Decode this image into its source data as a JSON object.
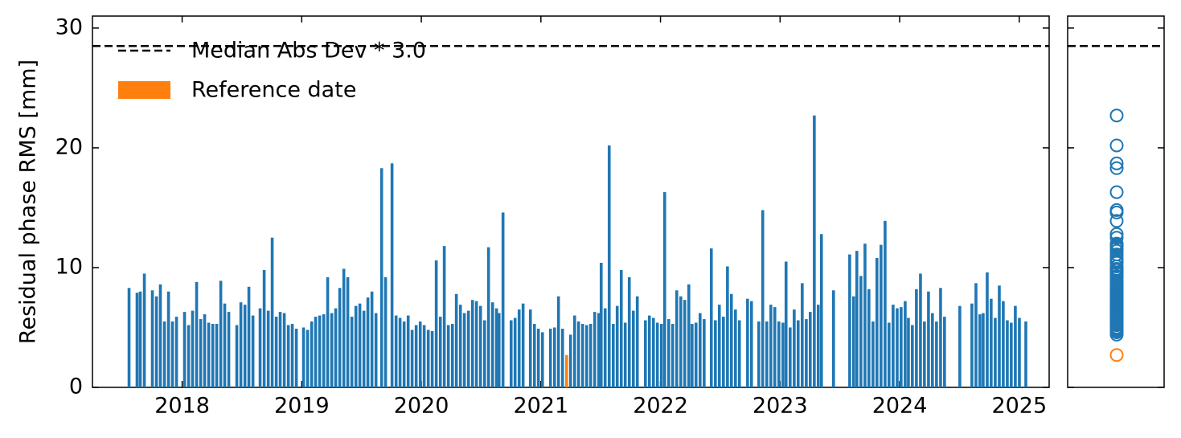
{
  "chart_data": {
    "type": "bar",
    "ylabel": "Residual phase RMS [mm]",
    "xlim": [
      2017.25,
      2025.25
    ],
    "xticks": [
      2018,
      2019,
      2020,
      2021,
      2022,
      2023,
      2024,
      2025
    ],
    "ylim": [
      0,
      31
    ],
    "yticks": [
      0,
      10,
      20,
      30
    ],
    "hline": {
      "name": "Median Abs Dev * 3.0",
      "value": 28.5,
      "color": "#000000"
    },
    "series": [
      {
        "color": "#1f77b4",
        "x": [
          2017.556,
          2017.623,
          2017.65,
          2017.684,
          2017.751,
          2017.785,
          2017.818,
          2017.852,
          2017.886,
          2017.919,
          2017.953,
          2018.02,
          2018.054,
          2018.087,
          2018.121,
          2018.155,
          2018.188,
          2018.222,
          2018.256,
          2018.289,
          2018.323,
          2018.356,
          2018.39,
          2018.457,
          2018.491,
          2018.525,
          2018.558,
          2018.592,
          2018.652,
          2018.686,
          2018.72,
          2018.753,
          2018.787,
          2018.82,
          2018.854,
          2018.888,
          2018.921,
          2018.955,
          2019.015,
          2019.049,
          2019.083,
          2019.116,
          2019.15,
          2019.184,
          2019.217,
          2019.251,
          2019.284,
          2019.318,
          2019.352,
          2019.385,
          2019.419,
          2019.453,
          2019.486,
          2019.52,
          2019.553,
          2019.587,
          2019.621,
          2019.668,
          2019.701,
          2019.755,
          2019.789,
          2019.822,
          2019.856,
          2019.89,
          2019.923,
          2019.957,
          2019.991,
          2020.024,
          2020.058,
          2020.091,
          2020.125,
          2020.159,
          2020.192,
          2020.226,
          2020.26,
          2020.293,
          2020.327,
          2020.36,
          2020.394,
          2020.428,
          2020.461,
          2020.495,
          2020.529,
          2020.562,
          2020.596,
          2020.629,
          2020.65,
          2020.683,
          2020.751,
          2020.784,
          2020.818,
          2020.851,
          2020.912,
          2020.946,
          2020.979,
          2021.013,
          2021.08,
          2021.114,
          2021.147,
          2021.181,
          2021.248,
          2021.282,
          2021.315,
          2021.349,
          2021.383,
          2021.416,
          2021.45,
          2021.484,
          2021.504,
          2021.537,
          2021.571,
          2021.605,
          2021.638,
          2021.672,
          2021.705,
          2021.739,
          2021.773,
          2021.806,
          2021.874,
          2021.907,
          2021.941,
          2021.974,
          2022.008,
          2022.035,
          2022.069,
          2022.102,
          2022.136,
          2022.17,
          2022.203,
          2022.237,
          2022.264,
          2022.297,
          2022.331,
          2022.365,
          2022.425,
          2022.459,
          2022.492,
          2022.526,
          2022.56,
          2022.593,
          2022.627,
          2022.66,
          2022.728,
          2022.761,
          2022.822,
          2022.855,
          2022.889,
          2022.923,
          2022.956,
          2022.99,
          2023.024,
          2023.05,
          2023.084,
          2023.118,
          2023.151,
          2023.185,
          2023.219,
          2023.252,
          2023.286,
          2023.319,
          2023.346,
          2023.447,
          2023.582,
          2023.615,
          2023.642,
          2023.676,
          2023.71,
          2023.743,
          2023.777,
          2023.81,
          2023.844,
          2023.878,
          2023.911,
          2023.945,
          2023.979,
          2024.012,
          2024.046,
          2024.073,
          2024.106,
          2024.14,
          2024.174,
          2024.207,
          2024.241,
          2024.274,
          2024.308,
          2024.342,
          2024.375,
          2024.503,
          2024.604,
          2024.638,
          2024.671,
          2024.698,
          2024.732,
          2024.765,
          2024.799,
          2024.833,
          2024.866,
          2024.9,
          2024.933,
          2024.967,
          2025.001,
          2025.055
        ],
        "values": [
          8.3,
          7.9,
          8.0,
          9.5,
          8.1,
          7.6,
          8.6,
          5.5,
          8.0,
          5.5,
          5.9,
          6.3,
          5.2,
          6.4,
          8.8,
          5.7,
          6.1,
          5.4,
          5.3,
          5.3,
          8.9,
          7.0,
          6.3,
          5.2,
          7.1,
          6.9,
          8.4,
          6.0,
          6.6,
          9.8,
          6.4,
          12.5,
          5.9,
          6.3,
          6.2,
          5.2,
          5.3,
          4.9,
          5.0,
          4.8,
          5.5,
          5.9,
          6.0,
          6.1,
          9.2,
          6.2,
          6.6,
          8.3,
          9.9,
          9.2,
          5.9,
          6.8,
          7.0,
          6.4,
          7.5,
          8.0,
          6.2,
          18.3,
          9.2,
          18.7,
          6.0,
          5.8,
          5.5,
          6.0,
          4.8,
          5.2,
          5.5,
          5.2,
          4.8,
          4.7,
          10.6,
          5.9,
          11.8,
          5.2,
          5.3,
          7.8,
          6.9,
          6.2,
          6.4,
          7.3,
          7.2,
          6.8,
          5.6,
          11.7,
          7.1,
          6.6,
          6.2,
          14.6,
          5.6,
          5.8,
          6.5,
          7.0,
          6.5,
          5.3,
          4.9,
          4.6,
          4.9,
          5.0,
          7.6,
          4.9,
          4.4,
          6.0,
          5.5,
          5.3,
          5.2,
          5.3,
          6.3,
          6.2,
          10.4,
          6.6,
          20.2,
          5.3,
          6.8,
          9.8,
          5.4,
          9.2,
          6.4,
          7.6,
          5.6,
          6.0,
          5.8,
          5.4,
          5.3,
          16.3,
          5.7,
          5.3,
          8.1,
          7.6,
          7.3,
          8.6,
          5.3,
          5.4,
          6.2,
          5.7,
          11.6,
          5.6,
          6.9,
          5.9,
          10.1,
          7.8,
          6.5,
          5.6,
          7.4,
          7.2,
          5.5,
          14.8,
          5.5,
          6.9,
          6.7,
          5.5,
          5.4,
          10.5,
          5.0,
          6.5,
          5.6,
          8.7,
          5.7,
          6.3,
          22.7,
          6.9,
          12.8,
          8.1,
          11.1,
          7.6,
          11.4,
          9.3,
          12.0,
          8.2,
          5.5,
          10.8,
          11.9,
          13.9,
          5.4,
          6.9,
          6.6,
          6.7,
          7.2,
          5.8,
          5.2,
          8.2,
          9.5,
          5.5,
          8.0,
          6.2,
          5.5,
          8.3,
          5.9,
          6.8,
          7.0,
          8.7,
          6.1,
          6.2,
          9.6,
          7.4,
          5.8,
          8.5,
          7.2,
          5.6,
          5.4,
          6.8,
          5.8,
          5.5
        ]
      },
      {
        "name": "Reference date",
        "color": "#ff7f0e",
        "x": [
          2021.215
        ],
        "values": [
          2.7
        ]
      }
    ]
  }
}
